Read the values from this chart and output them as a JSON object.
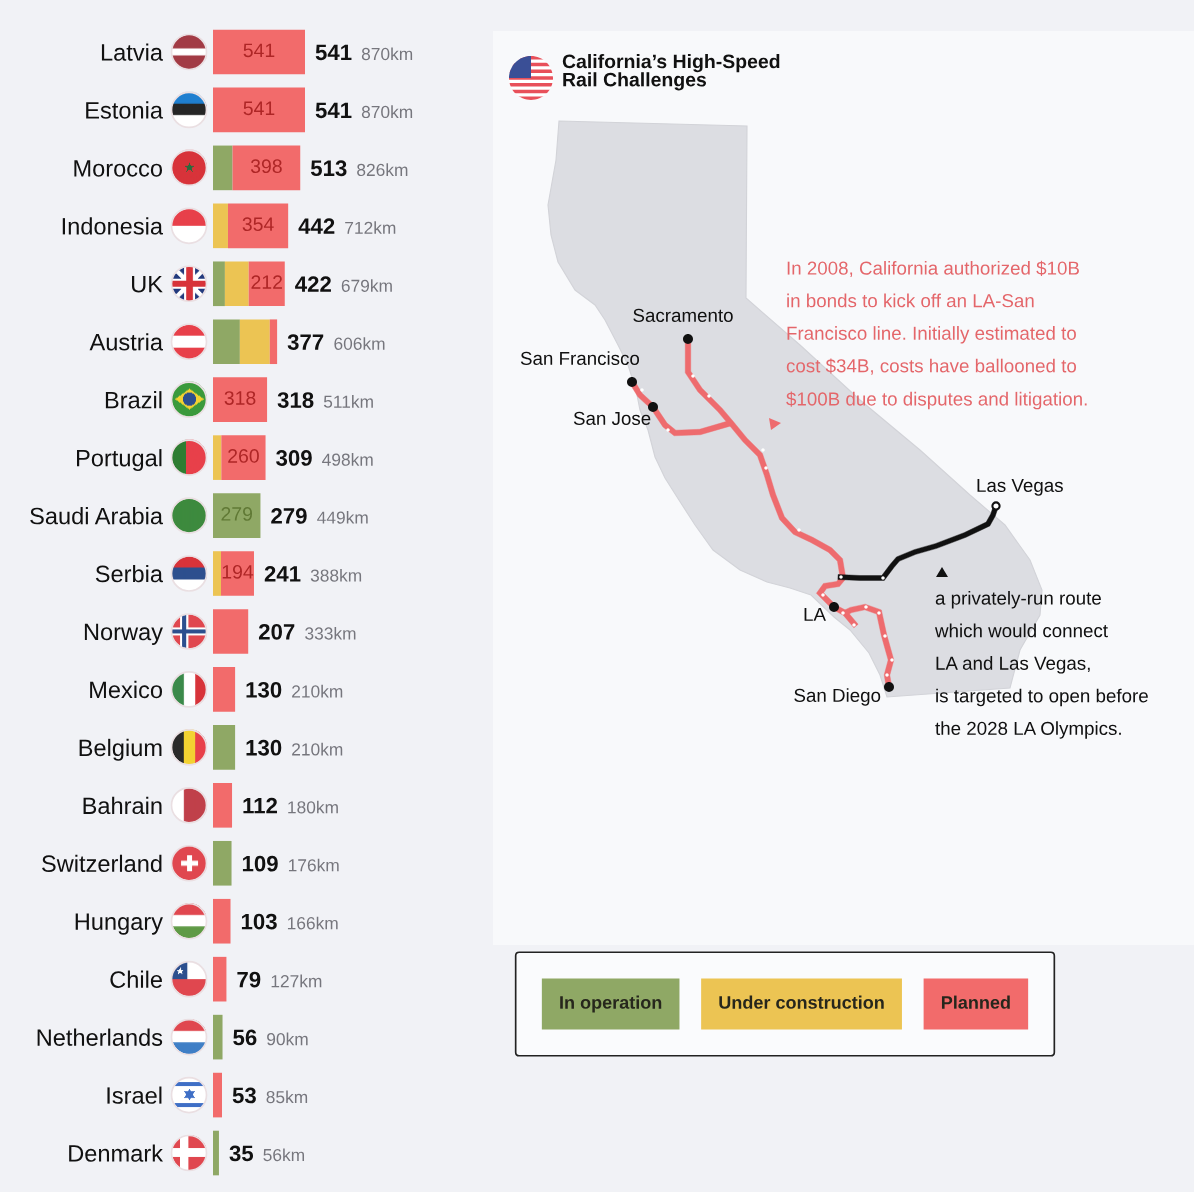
{
  "chart_data": [
    {
      "type": "bar",
      "orientation": "horizontal",
      "stacked": true,
      "categories": [
        "Latvia",
        "Estonia",
        "Morocco",
        "Indonesia",
        "UK",
        "Austria",
        "Brazil",
        "Portugal",
        "Saudi Arabia",
        "Serbia",
        "Norway",
        "Mexico",
        "Belgium",
        "Bahrain",
        "Switzerland",
        "Hungary",
        "Chile",
        "Netherlands",
        "Israel",
        "Denmark"
      ],
      "series": [
        {
          "name": "In operation",
          "color": "#8fa865",
          "values": [
            null,
            null,
            115,
            null,
            70,
            158,
            null,
            null,
            279,
            null,
            null,
            null,
            130,
            null,
            109,
            null,
            null,
            56,
            null,
            35
          ],
          "value_labels": [
            null,
            null,
            null,
            null,
            null,
            null,
            null,
            null,
            "279",
            null,
            null,
            null,
            null,
            null,
            null,
            null,
            null,
            null,
            null,
            null
          ]
        },
        {
          "name": "Under construction",
          "color": "#ecc453",
          "values": [
            null,
            null,
            null,
            88,
            140,
            176,
            null,
            49,
            null,
            47,
            null,
            null,
            null,
            null,
            null,
            null,
            null,
            null,
            null,
            null
          ]
        },
        {
          "name": "Planned",
          "color": "#f26b6b",
          "values": [
            541,
            541,
            398,
            354,
            212,
            43,
            318,
            260,
            null,
            194,
            207,
            130,
            null,
            112,
            null,
            103,
            79,
            null,
            53,
            null
          ],
          "value_labels": [
            "541",
            "541",
            "398",
            "354",
            "212",
            null,
            "318",
            "260",
            null,
            "194",
            null,
            null,
            null,
            null,
            null,
            null,
            null,
            null,
            null,
            null
          ]
        }
      ],
      "totals": [
        "541",
        "541",
        "513",
        "442",
        "422",
        "377",
        "318",
        "309",
        "279",
        "241",
        "207",
        "130",
        "130",
        "112",
        "109",
        "103",
        "79",
        "56",
        "53",
        "35"
      ],
      "annotations": [
        "870km",
        "870km",
        "826km",
        "712km",
        "679km",
        "606km",
        "511km",
        "498km",
        "449km",
        "388km",
        "333km",
        "210km",
        "210km",
        "180km",
        "176km",
        "166km",
        "127km",
        "90km",
        "85km",
        "56km"
      ],
      "tick_labels": "y",
      "legend": "bottom right"
    },
    {
      "type": "other",
      "title": "California’s High-Speed\nRail Challenges",
      "annotations": [
        "Sacramento",
        "San Francisco",
        "San Jose",
        "Las Vegas",
        "LA",
        "San Diego",
        "In 2008, California authorized $10B\nin bonds to kick off an LA-San\nFrancisco line. Initially estimated to\ncost $34B, costs have ballooned to\n$100B due to disputes and litigation.",
        "a privately-run route\nwhich would connect\nLA and Las Vegas,\nis targeted to open before\nthe 2028 LA Olympics."
      ]
    }
  ]
}
